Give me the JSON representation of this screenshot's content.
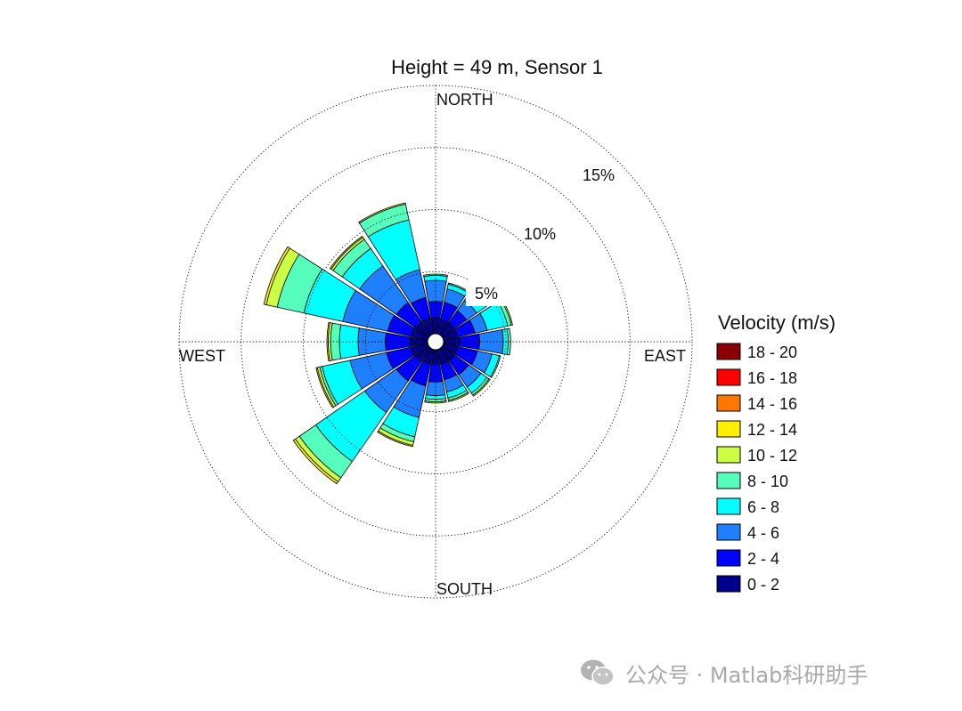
{
  "chart_data": {
    "type": "windrose",
    "title": "Height = 49 m, Sensor 1",
    "directions": [
      "N",
      "NNE",
      "NE",
      "ENE",
      "E",
      "ESE",
      "SE",
      "SSE",
      "S",
      "SSW",
      "SW",
      "WSW",
      "W",
      "WNW",
      "NW",
      "NNW"
    ],
    "direction_angles_deg": [
      0,
      22.5,
      45,
      67.5,
      90,
      112.5,
      135,
      157.5,
      180,
      202.5,
      225,
      247.5,
      270,
      292.5,
      315,
      337.5
    ],
    "compass_labels": {
      "north": "NORTH",
      "east": "EAST",
      "south": "SOUTH",
      "west": "WEST"
    },
    "ring_percent": [
      5,
      10,
      15
    ],
    "ring_labels": [
      "5%",
      "10%",
      "15%"
    ],
    "max_percent": 20,
    "legend_title": "Velocity (m/s)",
    "bins": [
      {
        "label": "0 - 2",
        "color": "#00008b"
      },
      {
        "label": "2 - 4",
        "color": "#0000ff"
      },
      {
        "label": "4 - 6",
        "color": "#1e7fff"
      },
      {
        "label": "6 - 8",
        "color": "#00ffff"
      },
      {
        "label": "8 - 10",
        "color": "#55ffbb"
      },
      {
        "label": "10 - 12",
        "color": "#ccff44"
      },
      {
        "label": "12 - 14",
        "color": "#ffee00"
      },
      {
        "label": "14 - 16",
        "color": "#ff7700"
      },
      {
        "label": "16 - 18",
        "color": "#ff0000"
      },
      {
        "label": "18 - 20",
        "color": "#8b0000"
      }
    ],
    "cumulative_percent": [
      [
        1.3,
        2.6,
        4.3,
        4.7,
        4.8,
        4.8,
        4.8,
        4.8,
        4.8,
        4.8
      ],
      [
        1.2,
        2.6,
        3.7,
        4.1,
        4.2,
        4.2,
        4.2,
        4.2,
        4.2,
        4.2
      ],
      [
        1.2,
        2.4,
        3.4,
        4.3,
        4.4,
        4.5,
        4.5,
        4.5,
        4.5,
        4.5
      ],
      [
        1.2,
        2.6,
        3.6,
        5.3,
        5.6,
        5.7,
        5.7,
        5.7,
        5.7,
        5.7
      ],
      [
        1.3,
        2.9,
        4.8,
        5.2,
        5.4,
        5.4,
        5.4,
        5.4,
        5.4,
        5.4
      ],
      [
        1.2,
        2.8,
        4.0,
        4.6,
        4.7,
        4.7,
        4.7,
        4.7,
        4.7,
        4.7
      ],
      [
        1.2,
        2.6,
        3.8,
        4.4,
        4.6,
        4.7,
        4.7,
        4.7,
        4.7,
        4.7
      ],
      [
        1.2,
        2.5,
        3.5,
        4.0,
        4.2,
        4.3,
        4.3,
        4.3,
        4.3,
        4.3
      ],
      [
        1.2,
        2.6,
        3.7,
        4.0,
        4.2,
        4.3,
        4.3,
        4.3,
        4.3,
        4.3
      ],
      [
        1.2,
        3.0,
        5.6,
        7.2,
        7.6,
        7.9,
        8.0,
        8.0,
        8.0,
        8.0
      ],
      [
        1.3,
        3.2,
        6.3,
        11.1,
        12.7,
        13.1,
        13.3,
        13.3,
        13.3,
        13.3
      ],
      [
        1.4,
        3.4,
        6.4,
        8.7,
        8.9,
        9.1,
        9.2,
        9.2,
        9.2,
        9.2
      ],
      [
        1.4,
        3.4,
        5.6,
        7.1,
        7.8,
        8.0,
        8.1,
        8.1,
        8.1,
        8.1
      ],
      [
        1.4,
        3.3,
        7.0,
        10.2,
        12.4,
        13.3,
        13.5,
        13.5,
        13.5,
        13.5
      ],
      [
        1.3,
        3.2,
        6.8,
        8.5,
        9.4,
        9.6,
        9.7,
        9.7,
        9.7,
        9.7
      ],
      [
        1.3,
        3.0,
        5.3,
        9.4,
        10.7,
        10.8,
        10.8,
        10.8,
        10.8,
        10.8
      ]
    ]
  },
  "watermark": {
    "icon": "wechat-icon",
    "text": "公众号 · Matlab科研助手"
  }
}
